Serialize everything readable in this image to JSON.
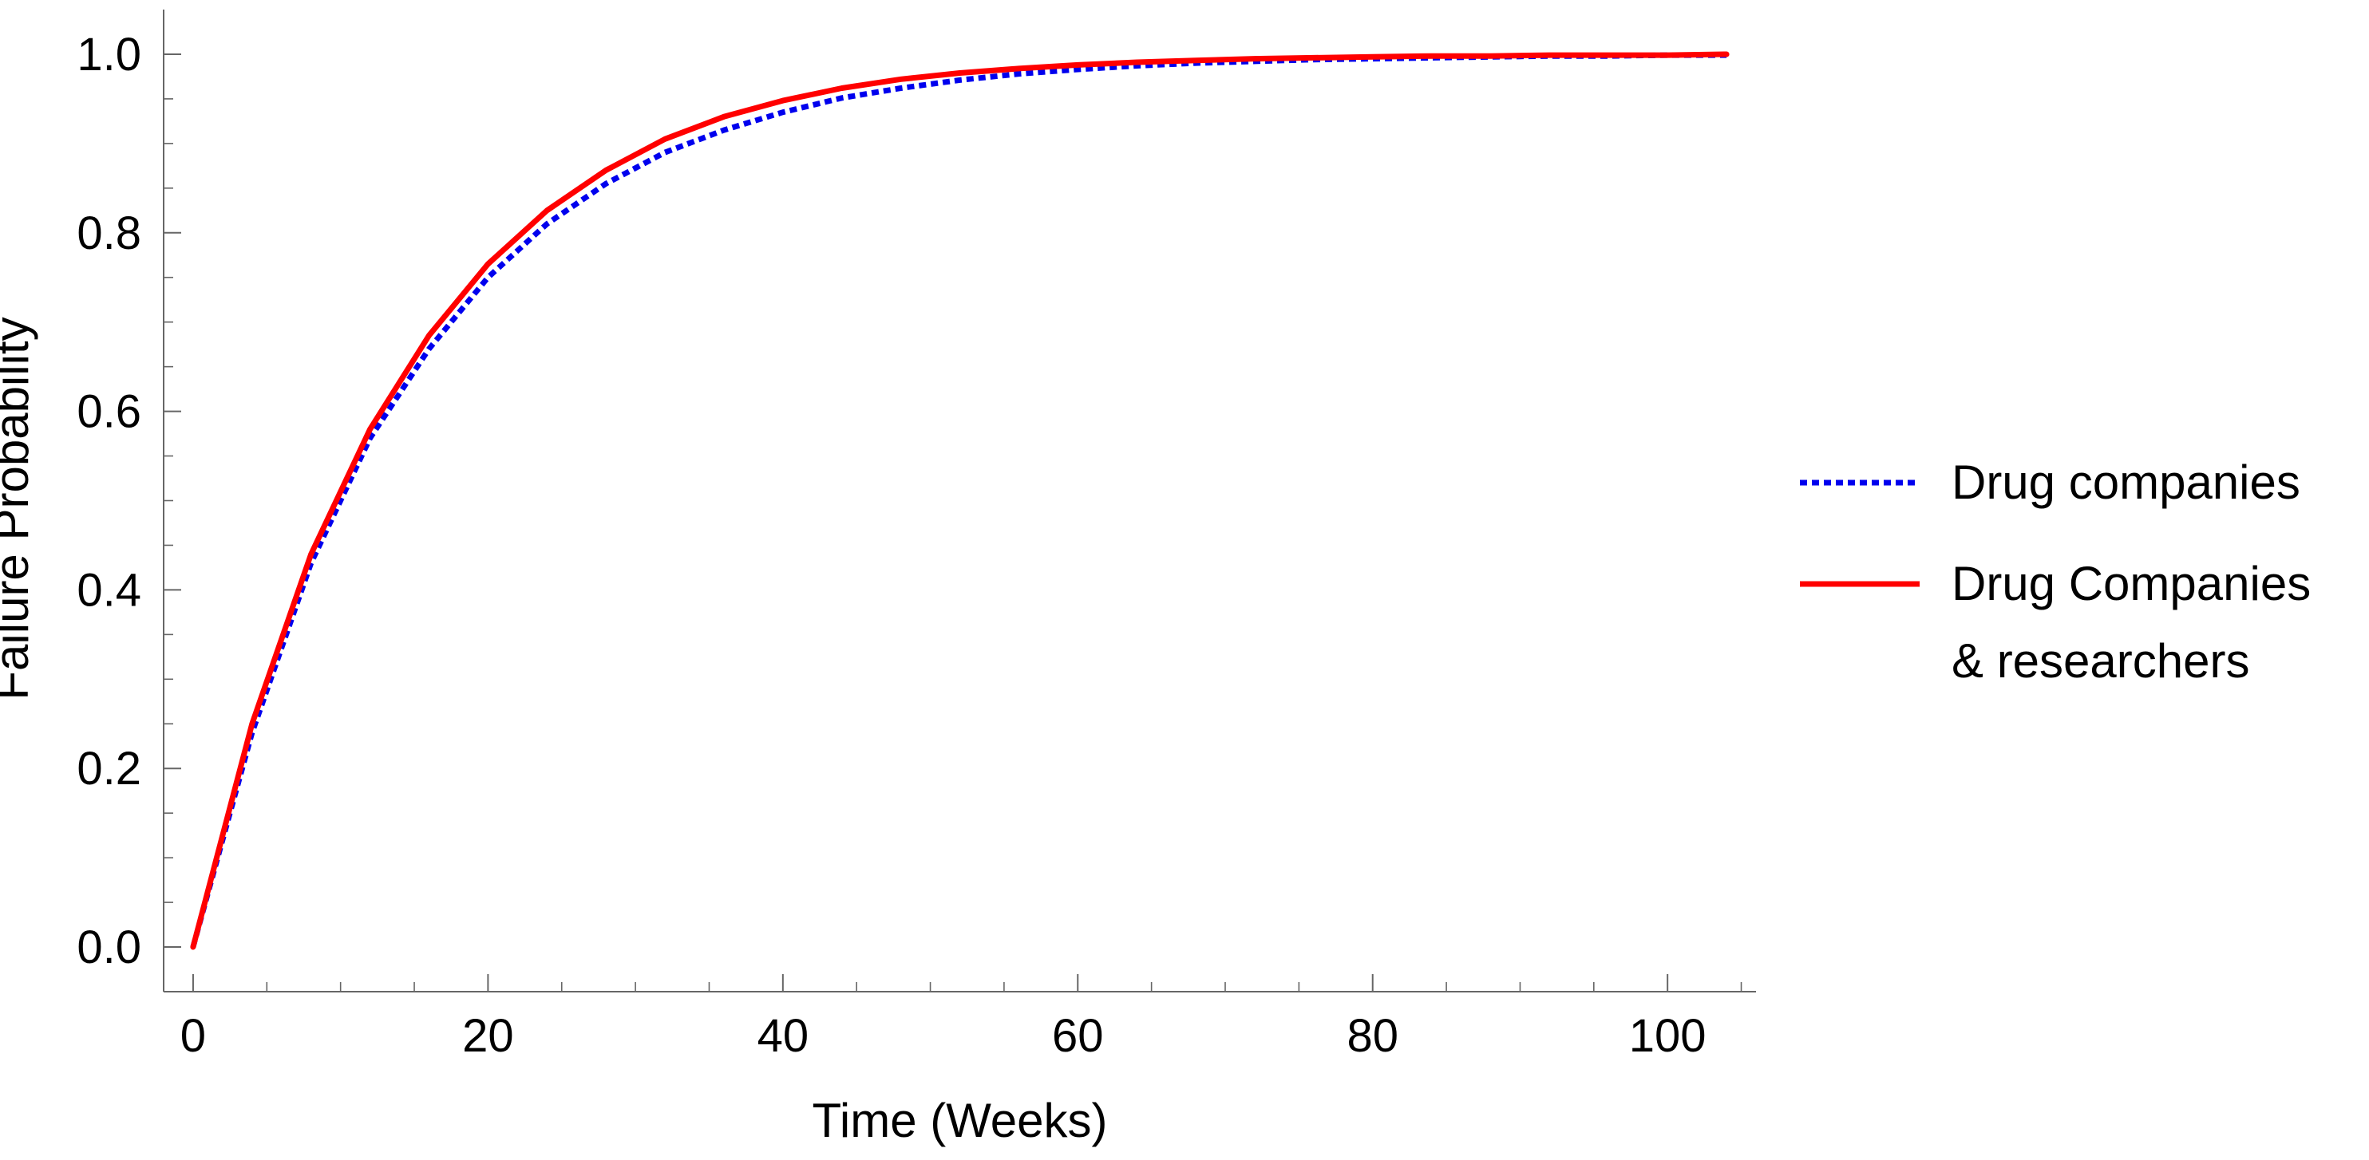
{
  "chart_data": {
    "type": "line",
    "title": "",
    "xlabel": "Time (Weeks)",
    "ylabel": "Failure Probability",
    "xlim": [
      -2,
      106
    ],
    "ylim": [
      -0.05,
      1.05
    ],
    "x_ticks": [
      0,
      20,
      40,
      60,
      80,
      100
    ],
    "x_tick_labels": [
      "0",
      "20",
      "40",
      "60",
      "80",
      "100"
    ],
    "y_ticks": [
      0.0,
      0.2,
      0.4,
      0.6,
      0.8,
      1.0
    ],
    "y_tick_labels": [
      "0.0",
      "0.2",
      "0.4",
      "0.6",
      "0.8",
      "1.0"
    ],
    "grid": false,
    "legend_position": "right",
    "x": [
      0,
      4,
      8,
      12,
      16,
      20,
      24,
      28,
      32,
      36,
      40,
      44,
      48,
      52,
      56,
      60,
      64,
      68,
      72,
      76,
      80,
      84,
      88,
      92,
      96,
      100,
      104
    ],
    "series": [
      {
        "name": "Drug companies",
        "color": "#0000ee",
        "dash": "dotted",
        "values": [
          0.0,
          0.24,
          0.43,
          0.57,
          0.67,
          0.75,
          0.81,
          0.855,
          0.89,
          0.915,
          0.935,
          0.951,
          0.962,
          0.971,
          0.978,
          0.983,
          0.987,
          0.99,
          0.992,
          0.994,
          0.995,
          0.996,
          0.997,
          0.998,
          0.998,
          0.999,
          0.999
        ]
      },
      {
        "name": "Drug Companies\n& researchers",
        "legend_lines": [
          "Drug Companies",
          "& researchers"
        ],
        "color": "#ff0000",
        "dash": "solid",
        "values": [
          0.0,
          0.25,
          0.44,
          0.58,
          0.685,
          0.765,
          0.825,
          0.87,
          0.905,
          0.93,
          0.948,
          0.962,
          0.972,
          0.979,
          0.984,
          0.988,
          0.991,
          0.993,
          0.995,
          0.996,
          0.997,
          0.998,
          0.998,
          0.999,
          0.999,
          0.999,
          1.0
        ]
      }
    ]
  }
}
